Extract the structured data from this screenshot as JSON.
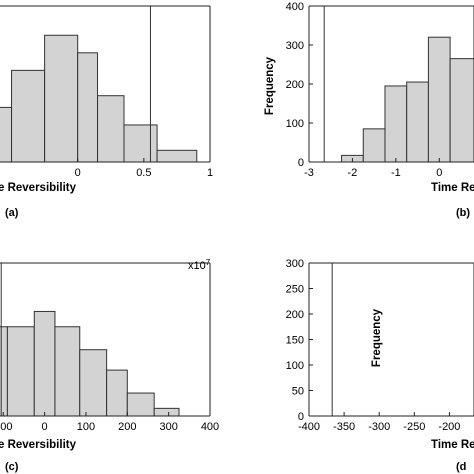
{
  "chart_data": [
    {
      "type": "bar",
      "panel": "(a)",
      "xlabel": "e Reversibility",
      "ylabel": "",
      "xlim": [
        -0.625,
        1.0
      ],
      "ylim": [
        0,
        400
      ],
      "x_ticks": [
        ".5",
        "0",
        "0.5",
        "1"
      ],
      "y_ticks": [],
      "bins": [
        {
          "x0": -0.625,
          "x1": -0.5,
          "value": 140
        },
        {
          "x0": -0.5,
          "x1": -0.25,
          "value": 235
        },
        {
          "x0": -0.25,
          "x1": 0.0,
          "value": 325
        },
        {
          "x0": 0.0,
          "x1": 0.15,
          "value": 280
        },
        {
          "x0": 0.15,
          "x1": 0.35,
          "value": 170
        },
        {
          "x0": 0.35,
          "x1": 0.6,
          "value": 95
        },
        {
          "x0": 0.6,
          "x1": 0.9,
          "value": 30
        }
      ],
      "vline": 0.55
    },
    {
      "type": "bar",
      "panel": "(b)",
      "xlabel": "Time Re",
      "ylabel": "Frequency",
      "xlim": [
        -3,
        0.8
      ],
      "ylim": [
        0,
        400
      ],
      "x_ticks": [
        "-3",
        "-2",
        "-1",
        "0"
      ],
      "y_ticks": [
        "0",
        "100",
        "200",
        "300",
        "400"
      ],
      "bins": [
        {
          "x0": -2.25,
          "x1": -1.75,
          "value": 17
        },
        {
          "x0": -1.75,
          "x1": -1.25,
          "value": 85
        },
        {
          "x0": -1.25,
          "x1": -0.75,
          "value": 195
        },
        {
          "x0": -0.75,
          "x1": -0.25,
          "value": 205
        },
        {
          "x0": -0.25,
          "x1": 0.25,
          "value": 320
        },
        {
          "x0": 0.25,
          "x1": 0.8,
          "value": 265
        }
      ],
      "vline": -2.65
    },
    {
      "type": "bar",
      "panel": "(c)",
      "xlabel": "e Reversibility",
      "ylabel": "",
      "multiplier": "x10^7",
      "xlim": [
        -120,
        400
      ],
      "ylim": [
        0,
        300
      ],
      "x_ticks": [
        "100",
        "0",
        "100",
        "200",
        "300",
        "400"
      ],
      "y_ticks": [],
      "bins": [
        {
          "x0": -120,
          "x1": -90,
          "value": 175
        },
        {
          "x0": -90,
          "x1": -25,
          "value": 175
        },
        {
          "x0": -25,
          "x1": 25,
          "value": 205
        },
        {
          "x0": 25,
          "x1": 85,
          "value": 175
        },
        {
          "x0": 85,
          "x1": 150,
          "value": 130
        },
        {
          "x0": 150,
          "x1": 200,
          "value": 90
        },
        {
          "x0": 200,
          "x1": 265,
          "value": 45
        },
        {
          "x0": 265,
          "x1": 325,
          "value": 15
        }
      ],
      "vline": -105
    },
    {
      "type": "bar",
      "panel": "(d",
      "xlabel": "Time Re",
      "ylabel": "Frequency",
      "xlim": [
        -400,
        -165
      ],
      "ylim": [
        0,
        300
      ],
      "x_ticks": [
        "-400",
        "-350",
        "-300",
        "-250",
        "-200"
      ],
      "y_ticks": [
        "0",
        "50",
        "100",
        "150",
        "200",
        "250",
        "300"
      ],
      "bins": [],
      "vline": -367
    }
  ]
}
